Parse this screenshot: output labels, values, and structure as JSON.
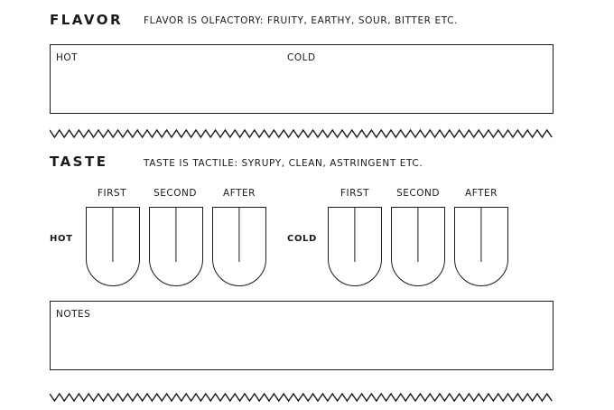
{
  "flavor": {
    "heading": "FLAVOR",
    "description": "FLAVOR IS OLFACTORY: FRUITY, EARTHY, SOUR, BITTER ETC.",
    "box_hot_label": "HOT",
    "box_cold_label": "COLD"
  },
  "taste": {
    "heading": "TASTE",
    "description": "TASTE IS TACTILE: SYRUPY, CLEAN, ASTRINGENT ETC.",
    "columns": [
      "FIRST",
      "SECOND",
      "AFTER"
    ],
    "row_hot_label": "HOT",
    "row_cold_label": "COLD"
  },
  "notes": {
    "label": "NOTES"
  }
}
